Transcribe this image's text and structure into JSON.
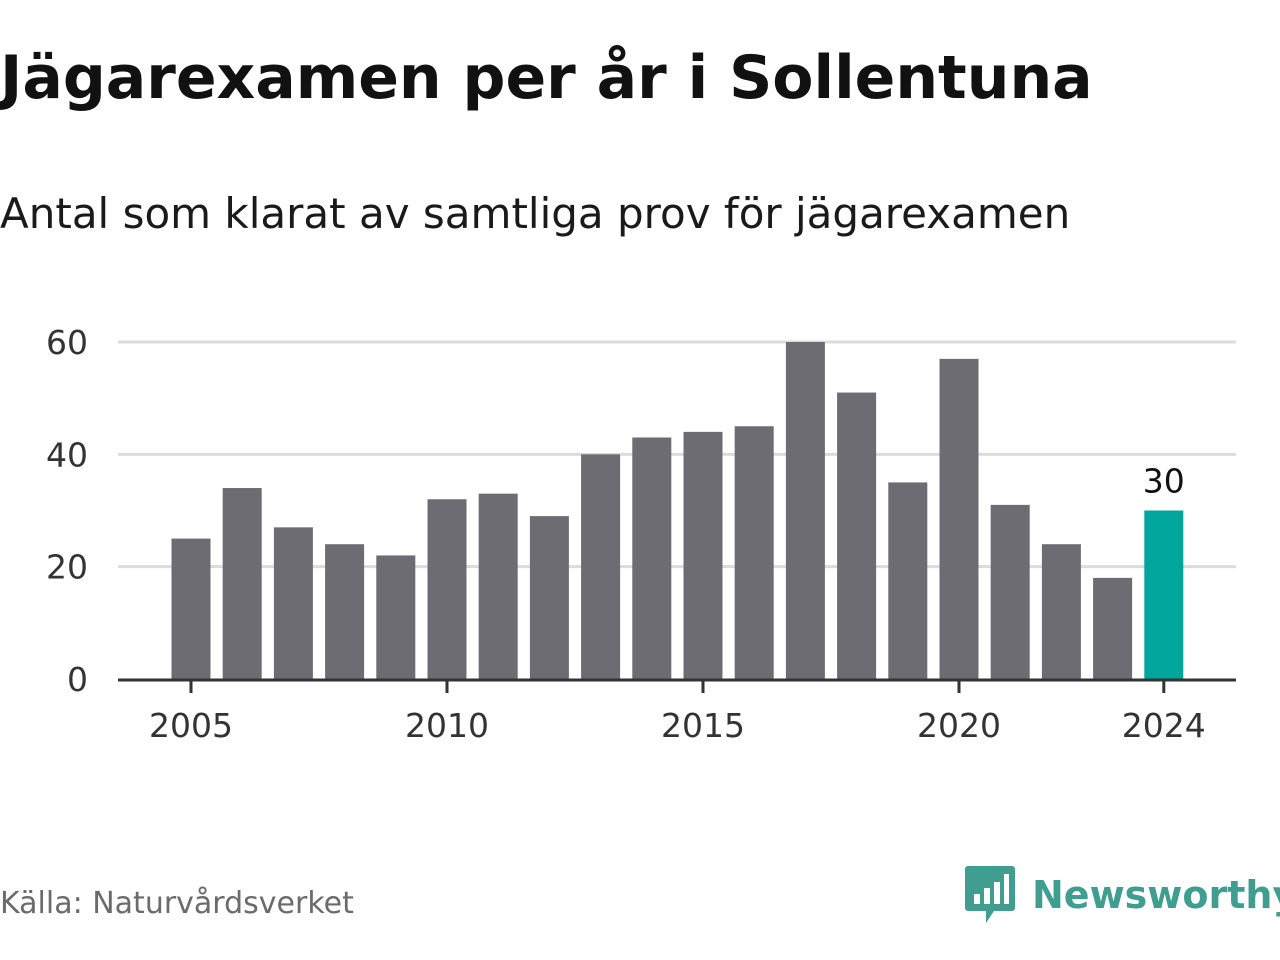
{
  "title": "Jägarexamen per år i Sollentuna",
  "subtitle": "Antal som klarat av samtliga prov för jägarexamen",
  "source": "Källa: Naturvårdsverket",
  "brand": {
    "name": "Newsworthy",
    "icon": "newsworthy-bar-chart-bubble-icon",
    "color": "#3f9e90"
  },
  "colors": {
    "bar": "#6d6c73",
    "highlight": "#00a59b",
    "grid": "#dcdcdc",
    "axis": "#333333"
  },
  "chart_data": {
    "type": "bar",
    "title": "Jägarexamen per år i Sollentuna",
    "subtitle": "Antal som klarat av samtliga prov för jägarexamen",
    "xlabel": "",
    "ylabel": "",
    "categories": [
      2005,
      2006,
      2007,
      2008,
      2009,
      2010,
      2011,
      2012,
      2013,
      2014,
      2015,
      2016,
      2017,
      2018,
      2019,
      2020,
      2021,
      2022,
      2023,
      2024
    ],
    "values": [
      25,
      34,
      27,
      24,
      22,
      32,
      33,
      29,
      40,
      43,
      44,
      45,
      60,
      51,
      35,
      57,
      31,
      24,
      18,
      30
    ],
    "ylim": [
      0,
      60
    ],
    "yticks": [
      0,
      20,
      40,
      60
    ],
    "xticks": [
      2005,
      2010,
      2015,
      2020,
      2024
    ],
    "highlight": {
      "category": 2024,
      "label": "30"
    },
    "grid": true,
    "legend": "none"
  }
}
